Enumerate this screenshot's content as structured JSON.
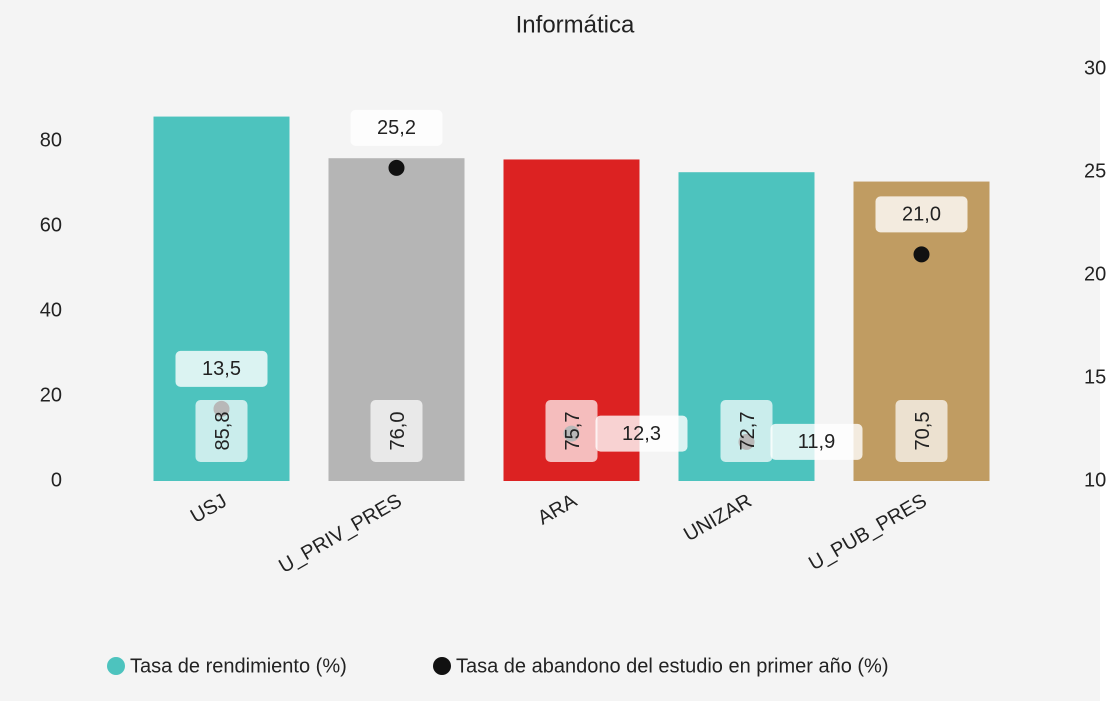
{
  "chart_data": {
    "type": "bar+scatter",
    "title": "Informática",
    "categories": [
      "USJ",
      "U_PRIV_PRES",
      "ARA",
      "UNIZAR",
      "U_PUB_PRES"
    ],
    "series": [
      {
        "name": "Tasa de rendimiento (%)",
        "color": "#4dc3be",
        "colors": [
          "#4dc3be",
          "#b5b5b5",
          "#dc2222",
          "#4dc3be",
          "#c09c62"
        ],
        "values": [
          85.8,
          76.0,
          75.7,
          72.7,
          70.5
        ],
        "value_labels": [
          "85,8",
          "76,0",
          "75,7",
          "72,7",
          "70,5"
        ]
      },
      {
        "name": "Tasa de abandono del estudio en primer año (%)",
        "color": "#111111",
        "axis": "y2",
        "values": [
          13.5,
          25.2,
          12.3,
          11.9,
          21.0
        ],
        "value_labels": [
          "13,5",
          "25,2",
          "12,3",
          "11,9",
          "21,0"
        ]
      }
    ],
    "ylim": [
      0,
      97
    ],
    "yticks": [
      0,
      20,
      40,
      60,
      80
    ],
    "y2lim": [
      10,
      30
    ],
    "y2ticks": [
      10,
      15,
      20,
      25,
      30
    ],
    "grid": false,
    "legend": "bottom"
  }
}
